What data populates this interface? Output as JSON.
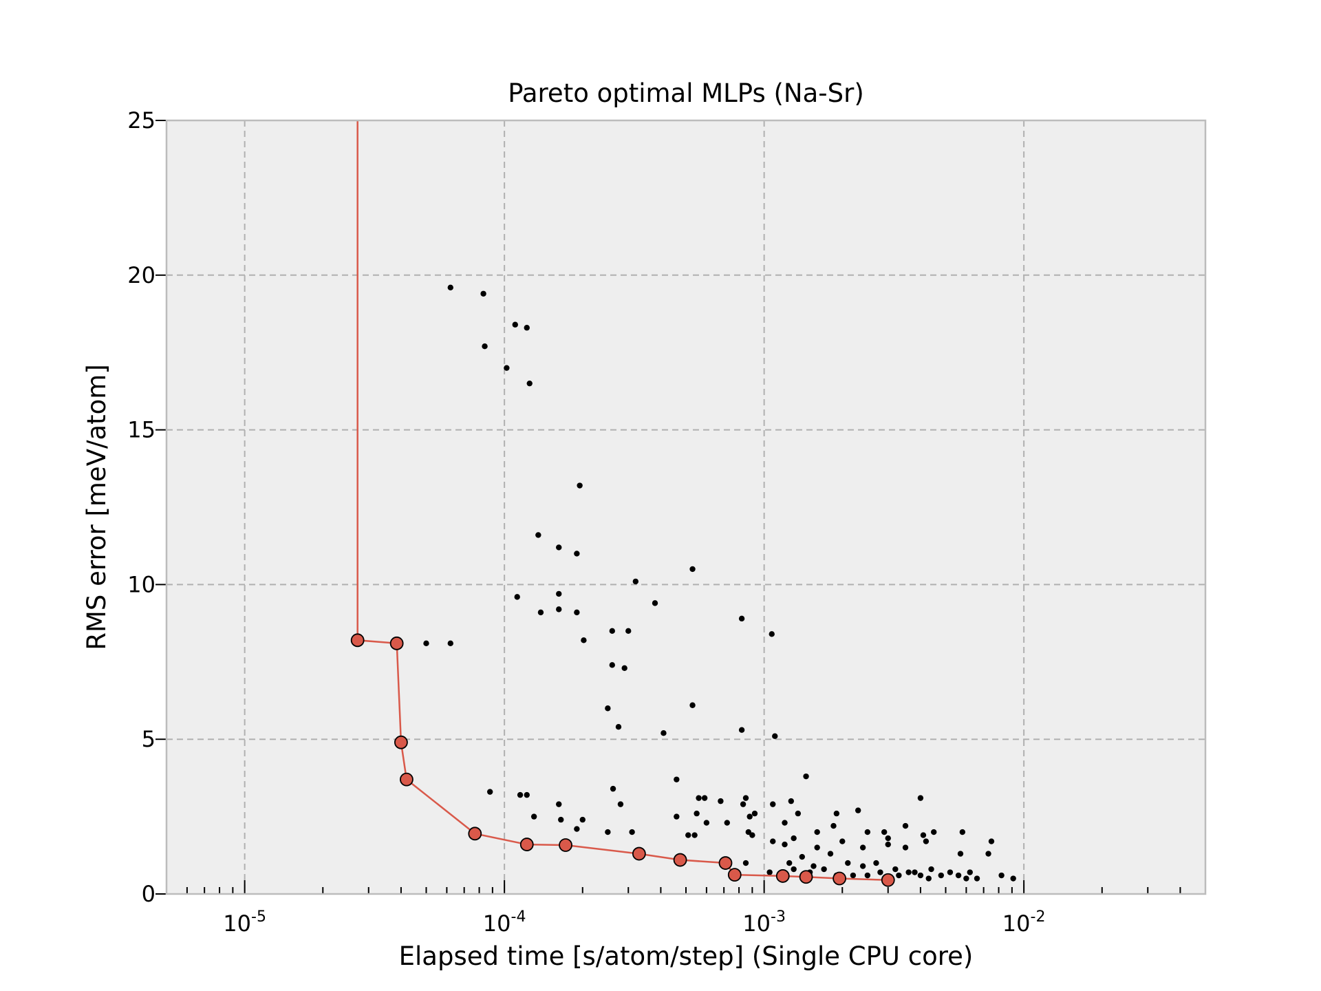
{
  "chart_data": {
    "type": "scatter",
    "title": "Pareto optimal MLPs (Na-Sr)",
    "xlabel": "Elapsed time [s/atom/step] (Single CPU core)",
    "ylabel": "RMS error [meV/atom]",
    "xscale": "log",
    "xlim": [
      5e-06,
      0.05
    ],
    "ylim": [
      0,
      25
    ],
    "grid": true,
    "x_ticks": [
      {
        "base": "10",
        "exp": "-5",
        "value": 1e-05
      },
      {
        "base": "10",
        "exp": "-4",
        "value": 0.0001
      },
      {
        "base": "10",
        "exp": "-3",
        "value": 0.001
      },
      {
        "base": "10",
        "exp": "-2",
        "value": 0.01
      }
    ],
    "y_ticks": [
      "0",
      "5",
      "10",
      "15",
      "20",
      "25"
    ],
    "colors": {
      "pareto": "#d9594a",
      "points": "#000000",
      "background": "#eeeeee"
    },
    "series": [
      {
        "role": "all-candidates",
        "points": [
          [
            6.2e-05,
            19.6
          ],
          [
            8.3e-05,
            19.4
          ],
          [
            8.4e-05,
            17.7
          ],
          [
            0.00011,
            18.4
          ],
          [
            0.000122,
            18.3
          ],
          [
            0.000102,
            17.0
          ],
          [
            0.000125,
            16.5
          ],
          [
            0.000195,
            13.2
          ],
          [
            0.000135,
            11.6
          ],
          [
            0.000162,
            11.2
          ],
          [
            0.00019,
            11.0
          ],
          [
            0.00053,
            10.5
          ],
          [
            0.00032,
            10.1
          ],
          [
            0.000162,
            9.7
          ],
          [
            0.000112,
            9.6
          ],
          [
            0.00038,
            9.4
          ],
          [
            0.000162,
            9.2
          ],
          [
            0.00019,
            9.1
          ],
          [
            0.000138,
            9.1
          ],
          [
            0.00082,
            8.9
          ],
          [
            0.00026,
            8.5
          ],
          [
            0.0003,
            8.5
          ],
          [
            0.00107,
            8.4
          ],
          [
            0.000202,
            8.2
          ],
          [
            5e-05,
            8.1
          ],
          [
            6.2e-05,
            8.1
          ],
          [
            0.00026,
            7.4
          ],
          [
            0.00029,
            7.3
          ],
          [
            0.00053,
            6.1
          ],
          [
            0.00025,
            6.0
          ],
          [
            0.000275,
            5.4
          ],
          [
            0.00082,
            5.3
          ],
          [
            0.00041,
            5.2
          ],
          [
            0.0011,
            5.1
          ],
          [
            0.00145,
            3.8
          ],
          [
            0.00046,
            3.7
          ],
          [
            0.000262,
            3.4
          ],
          [
            8.8e-05,
            3.3
          ],
          [
            0.000115,
            3.2
          ],
          [
            0.000122,
            3.2
          ],
          [
            0.00056,
            3.1
          ],
          [
            0.004,
            3.1
          ],
          [
            0.00085,
            3.1
          ],
          [
            0.000162,
            2.9
          ],
          [
            0.00028,
            2.9
          ],
          [
            0.00108,
            2.9
          ],
          [
            0.00059,
            3.1
          ],
          [
            0.00068,
            3.0
          ],
          [
            0.00083,
            2.9
          ],
          [
            0.00127,
            3.0
          ],
          [
            0.0023,
            2.7
          ],
          [
            0.00135,
            2.6
          ],
          [
            0.0019,
            2.6
          ],
          [
            0.00013,
            2.5
          ],
          [
            0.00046,
            2.5
          ],
          [
            0.00055,
            2.6
          ],
          [
            0.00088,
            2.5
          ],
          [
            0.00092,
            2.6
          ],
          [
            0.000165,
            2.4
          ],
          [
            0.0002,
            2.4
          ],
          [
            0.0006,
            2.3
          ],
          [
            0.00072,
            2.3
          ],
          [
            0.0012,
            2.3
          ],
          [
            0.0025,
            2.0
          ],
          [
            0.0035,
            2.2
          ],
          [
            0.0041,
            1.9
          ],
          [
            0.0045,
            2.0
          ],
          [
            0.0058,
            2.0
          ],
          [
            0.0075,
            1.7
          ],
          [
            0.003,
            1.8
          ],
          [
            0.0029,
            2.0
          ],
          [
            0.00185,
            2.2
          ],
          [
            0.0016,
            2.0
          ],
          [
            0.00019,
            2.1
          ],
          [
            0.00025,
            2.0
          ],
          [
            0.00031,
            2.0
          ],
          [
            0.00051,
            1.9
          ],
          [
            0.00054,
            1.9
          ],
          [
            0.00087,
            2.0
          ],
          [
            0.0009,
            1.9
          ],
          [
            0.00108,
            1.7
          ],
          [
            0.0012,
            1.6
          ],
          [
            0.0013,
            1.8
          ],
          [
            0.0016,
            1.5
          ],
          [
            0.002,
            1.7
          ],
          [
            0.0024,
            1.5
          ],
          [
            0.003,
            1.6
          ],
          [
            0.0035,
            1.5
          ],
          [
            0.0042,
            1.7
          ],
          [
            0.0057,
            1.3
          ],
          [
            0.0073,
            1.3
          ],
          [
            0.00085,
            1.0
          ],
          [
            0.00125,
            1.0
          ],
          [
            0.0014,
            1.2
          ],
          [
            0.00155,
            0.9
          ],
          [
            0.0018,
            1.3
          ],
          [
            0.0021,
            1.0
          ],
          [
            0.0024,
            0.9
          ],
          [
            0.0027,
            1.0
          ],
          [
            0.0032,
            0.8
          ],
          [
            0.0038,
            0.7
          ],
          [
            0.004,
            0.6
          ],
          [
            0.0043,
            0.5
          ],
          [
            0.0048,
            0.6
          ],
          [
            0.0052,
            0.7
          ],
          [
            0.006,
            0.5
          ],
          [
            0.0066,
            0.5
          ],
          [
            0.0082,
            0.6
          ],
          [
            0.0091,
            0.5
          ],
          [
            0.00105,
            0.7
          ],
          [
            0.0013,
            0.8
          ],
          [
            0.0015,
            0.7
          ],
          [
            0.0017,
            0.8
          ],
          [
            0.0019,
            0.6
          ],
          [
            0.0022,
            0.6
          ],
          [
            0.0025,
            0.6
          ],
          [
            0.0028,
            0.7
          ],
          [
            0.0033,
            0.6
          ],
          [
            0.0036,
            0.7
          ],
          [
            0.0044,
            0.8
          ],
          [
            0.0056,
            0.6
          ],
          [
            0.0062,
            0.7
          ]
        ]
      },
      {
        "role": "pareto-front",
        "points": [
          [
            2.72e-05,
            25
          ],
          [
            2.72e-05,
            8.2
          ],
          [
            3.85e-05,
            8.1
          ],
          [
            4e-05,
            4.9
          ],
          [
            4.2e-05,
            3.7
          ],
          [
            7.7e-05,
            1.95
          ],
          [
            0.000122,
            1.6
          ],
          [
            0.000172,
            1.58
          ],
          [
            0.00033,
            1.3
          ],
          [
            0.000475,
            1.1
          ],
          [
            0.00071,
            1.0
          ],
          [
            0.00077,
            0.62
          ],
          [
            0.00118,
            0.58
          ],
          [
            0.00145,
            0.55
          ],
          [
            0.00195,
            0.5
          ],
          [
            0.003,
            0.45
          ]
        ]
      }
    ]
  }
}
